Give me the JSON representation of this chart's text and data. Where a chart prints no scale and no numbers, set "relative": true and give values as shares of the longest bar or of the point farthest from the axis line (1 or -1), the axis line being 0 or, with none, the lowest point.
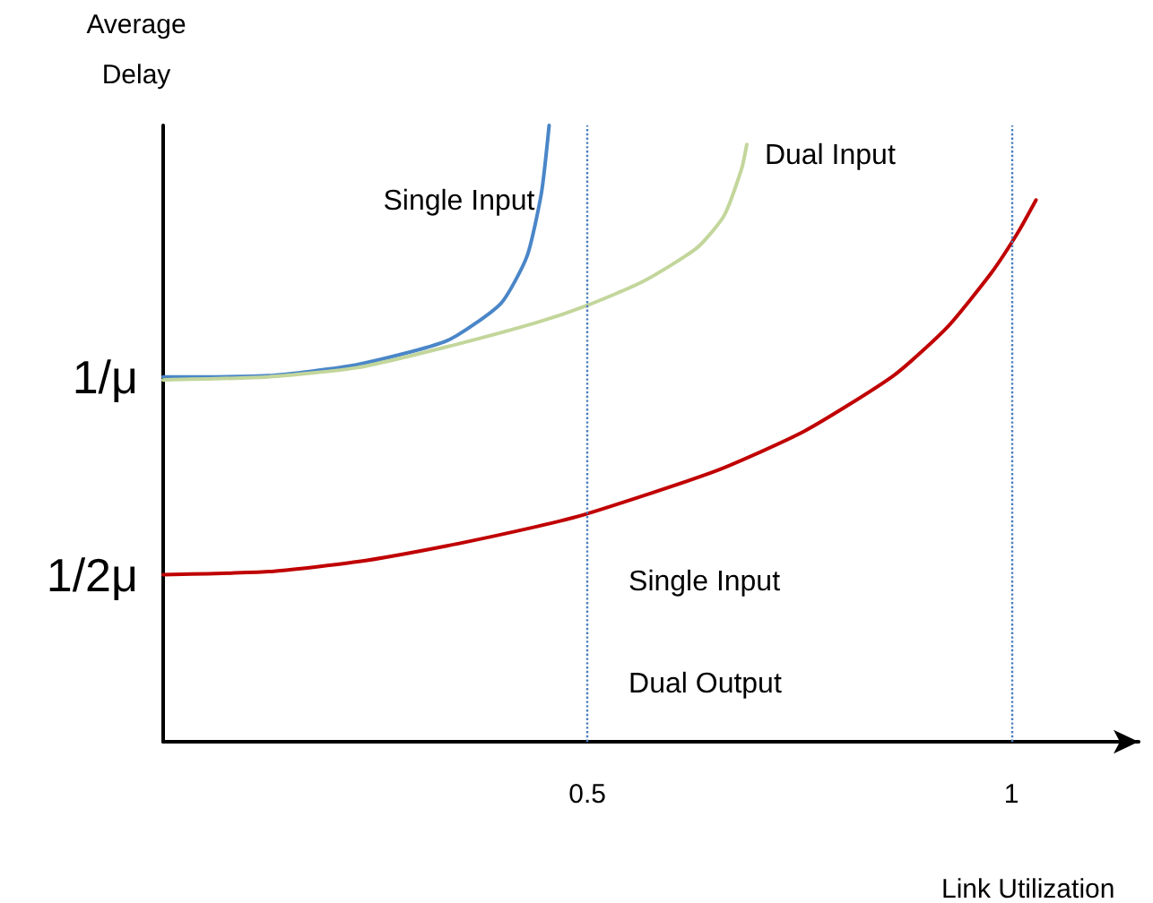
{
  "chart_data": {
    "type": "line",
    "relative": true,
    "xlabel": "Link Utilization",
    "ylabel": "Average Delay",
    "xlim": [
      0,
      1.15
    ],
    "xticks": [
      0.5,
      1.0
    ],
    "annotations": [
      {
        "text": "1/μ",
        "x": 0,
        "y": 0.592
      },
      {
        "text": "1/2μ",
        "x": 0,
        "y": 0.271
      }
    ],
    "series": [
      {
        "name": "Single Input",
        "color": "#4a86c8",
        "x": [
          0,
          0.124,
          0.229,
          0.335,
          0.398,
          0.429,
          0.446,
          0.455
        ],
        "values": [
          0.592,
          0.594,
          0.612,
          0.651,
          0.711,
          0.788,
          0.891,
          1
        ]
      },
      {
        "name": "Dual Input",
        "color": "#c3d69b",
        "x": [
          0,
          0.124,
          0.229,
          0.335,
          0.44,
          0.5,
          0.566,
          0.629,
          0.661,
          0.682,
          0.688
        ],
        "values": [
          0.587,
          0.592,
          0.607,
          0.641,
          0.68,
          0.708,
          0.747,
          0.801,
          0.853,
          0.93,
          0.969
        ]
      },
      {
        "name": "Single Input Dual Output",
        "color": "#c00000",
        "x": [
          0,
          0.124,
          0.229,
          0.335,
          0.44,
          0.5,
          0.651,
          0.756,
          0.861,
          0.924,
          0.977,
          1.008,
          1.029
        ],
        "values": [
          0.271,
          0.276,
          0.292,
          0.318,
          0.349,
          0.37,
          0.439,
          0.504,
          0.594,
          0.672,
          0.762,
          0.827,
          0.879
        ]
      }
    ],
    "ref_lines": [
      {
        "axis": "x",
        "value": 0.5,
        "color": "#4a7ebb",
        "line_style": "dotted"
      },
      {
        "axis": "x",
        "value": 1.0,
        "color": "#4a7ebb",
        "line_style": "dotted"
      }
    ],
    "grid": false,
    "legend": false,
    "line_style": "solid"
  }
}
